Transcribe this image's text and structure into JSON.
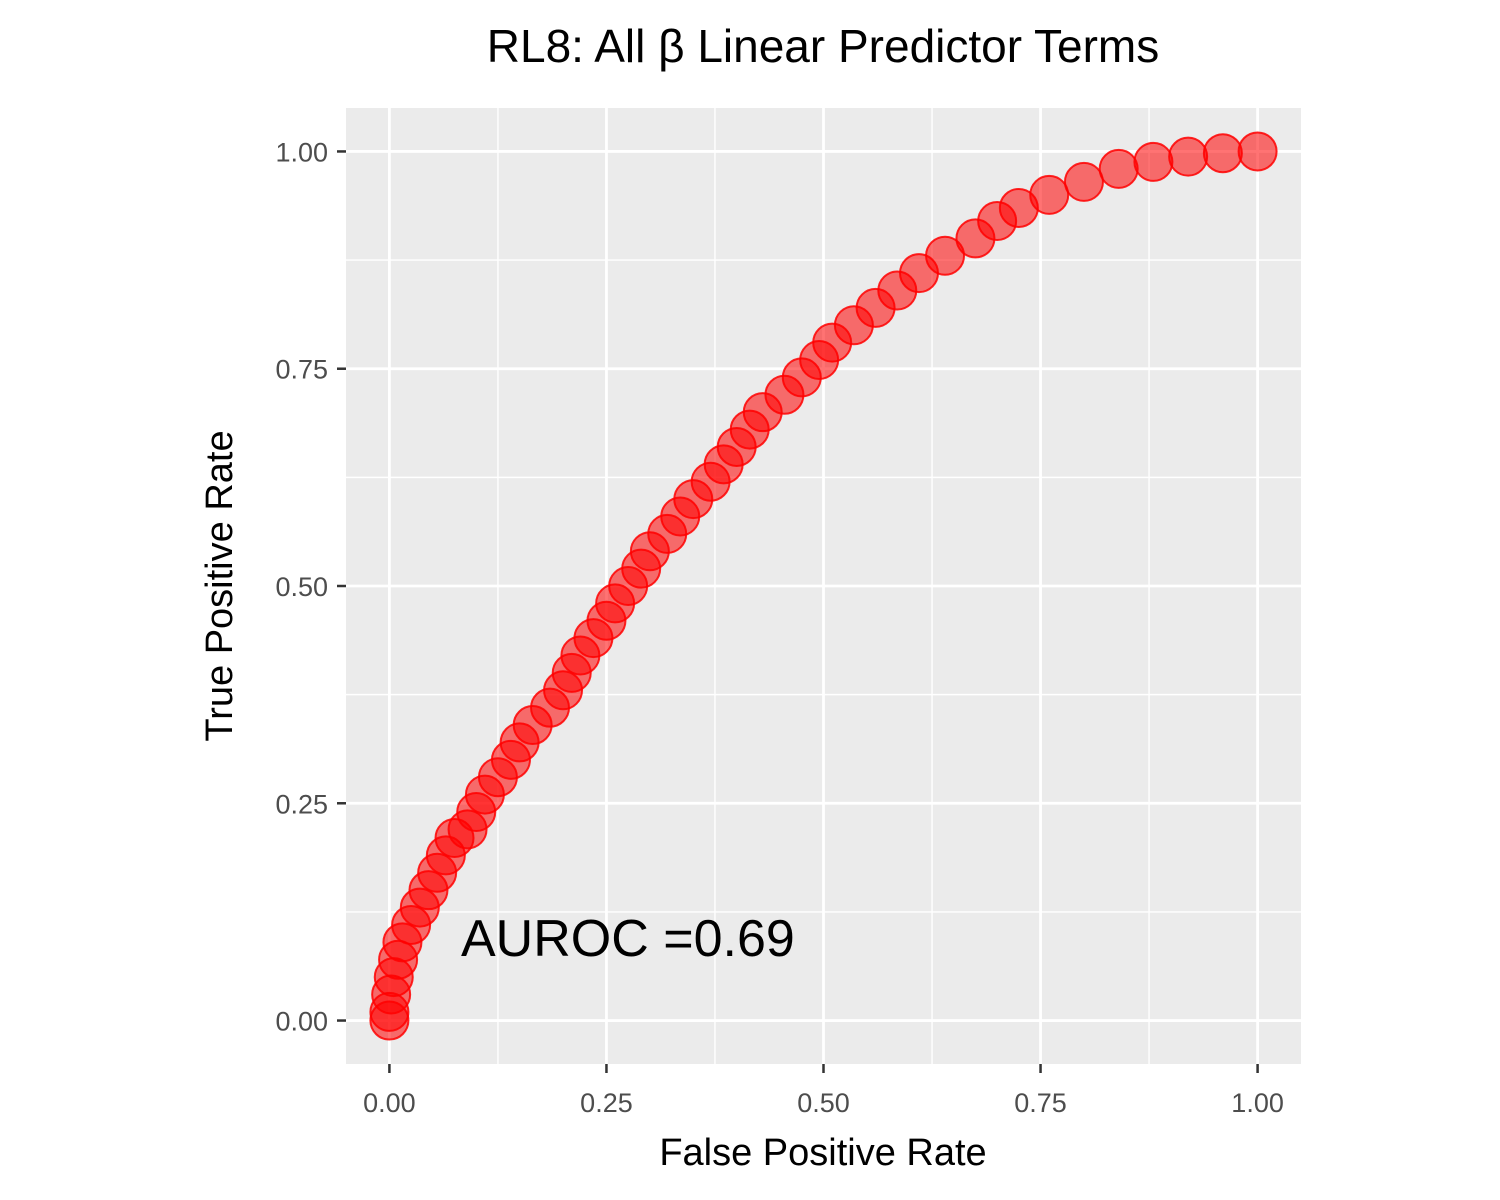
{
  "chart_data": {
    "type": "scatter",
    "title": "RL8: All β Linear Predictor Terms",
    "xlabel": "False Positive Rate",
    "ylabel": "True Positive Rate",
    "xlim": [
      -0.05,
      1.05
    ],
    "ylim": [
      -0.05,
      1.05
    ],
    "xticks": [
      0.0,
      0.25,
      0.5,
      0.75,
      1.0
    ],
    "yticks": [
      0.0,
      0.25,
      0.5,
      0.75,
      1.0
    ],
    "xtick_labels": [
      "0.00",
      "0.25",
      "0.50",
      "0.75",
      "1.00"
    ],
    "ytick_labels": [
      "0.00",
      "0.25",
      "0.50",
      "0.75",
      "1.00"
    ],
    "grid": true,
    "legend": "none",
    "annotation": "AUROC =0.69",
    "series": [
      {
        "color": "#ff0000",
        "points": [
          [
            0.0,
            0.0
          ],
          [
            0.0,
            0.01
          ],
          [
            0.002,
            0.03
          ],
          [
            0.005,
            0.05
          ],
          [
            0.01,
            0.07
          ],
          [
            0.015,
            0.09
          ],
          [
            0.025,
            0.11
          ],
          [
            0.035,
            0.13
          ],
          [
            0.045,
            0.15
          ],
          [
            0.055,
            0.17
          ],
          [
            0.065,
            0.19
          ],
          [
            0.075,
            0.21
          ],
          [
            0.09,
            0.22
          ],
          [
            0.1,
            0.24
          ],
          [
            0.11,
            0.26
          ],
          [
            0.125,
            0.28
          ],
          [
            0.14,
            0.3
          ],
          [
            0.15,
            0.32
          ],
          [
            0.165,
            0.34
          ],
          [
            0.185,
            0.36
          ],
          [
            0.2,
            0.38
          ],
          [
            0.21,
            0.4
          ],
          [
            0.22,
            0.42
          ],
          [
            0.235,
            0.44
          ],
          [
            0.25,
            0.46
          ],
          [
            0.26,
            0.48
          ],
          [
            0.275,
            0.5
          ],
          [
            0.29,
            0.52
          ],
          [
            0.3,
            0.54
          ],
          [
            0.32,
            0.56
          ],
          [
            0.335,
            0.58
          ],
          [
            0.35,
            0.6
          ],
          [
            0.37,
            0.62
          ],
          [
            0.385,
            0.64
          ],
          [
            0.4,
            0.66
          ],
          [
            0.415,
            0.68
          ],
          [
            0.43,
            0.7
          ],
          [
            0.455,
            0.72
          ],
          [
            0.475,
            0.74
          ],
          [
            0.495,
            0.76
          ],
          [
            0.51,
            0.78
          ],
          [
            0.535,
            0.8
          ],
          [
            0.56,
            0.82
          ],
          [
            0.585,
            0.84
          ],
          [
            0.61,
            0.86
          ],
          [
            0.64,
            0.88
          ],
          [
            0.675,
            0.9
          ],
          [
            0.7,
            0.92
          ],
          [
            0.725,
            0.935
          ],
          [
            0.76,
            0.95
          ],
          [
            0.8,
            0.965
          ],
          [
            0.84,
            0.98
          ],
          [
            0.88,
            0.988
          ],
          [
            0.92,
            0.994
          ],
          [
            0.96,
            0.998
          ],
          [
            1.0,
            1.0
          ]
        ]
      }
    ]
  }
}
